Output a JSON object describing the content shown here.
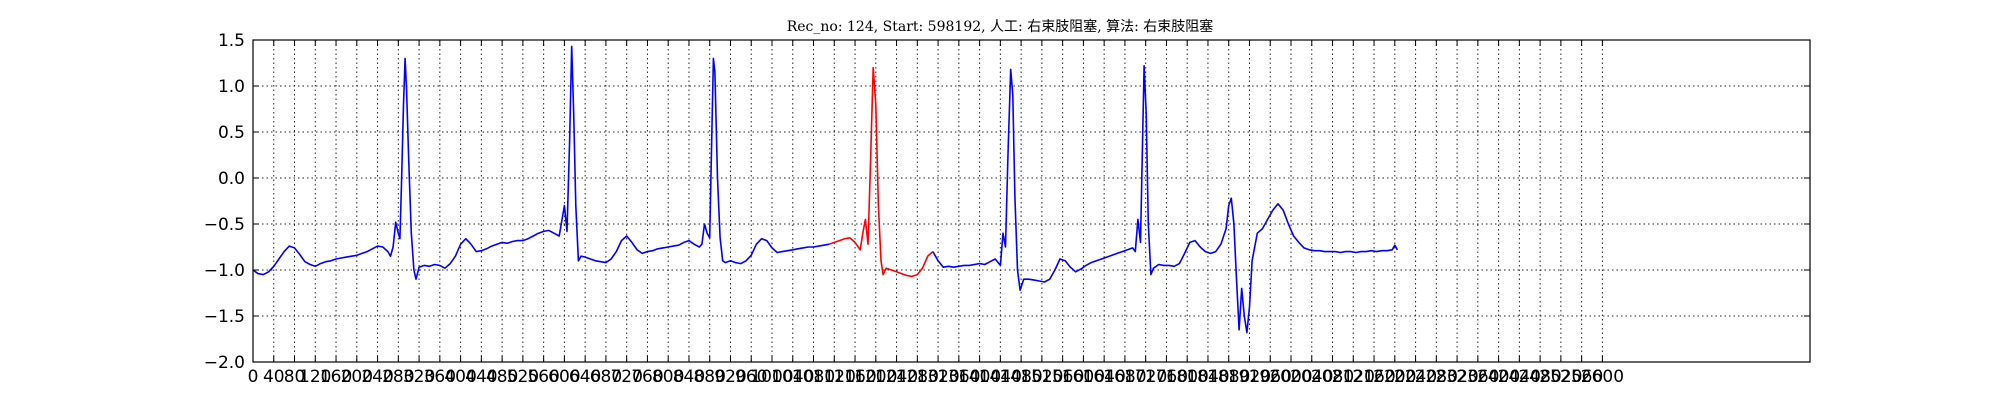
{
  "chart_data": {
    "type": "line",
    "title": "Rec_no: 124, Start: 598192, 人工: 右束肢阻塞, 算法: 右束肢阻塞",
    "xlabel": "",
    "ylabel": "",
    "xlim": [
      0,
      3000
    ],
    "ylim": [
      -2.0,
      1.5
    ],
    "grid": true,
    "y_ticks": [
      -2.0,
      -1.5,
      -1.0,
      -0.5,
      0.0,
      0.5,
      1.0,
      1.5
    ],
    "y_tick_labels": [
      "−2.0",
      "−1.5",
      "−1.0",
      "−0.5",
      "0.0",
      "0.5",
      "1.0",
      "1.5"
    ],
    "x_ticks": [
      0,
      40,
      80,
      120,
      160,
      200,
      240,
      280,
      320,
      360,
      400,
      440,
      480,
      520,
      560,
      600,
      640,
      680,
      720,
      760,
      800,
      840,
      880,
      920,
      960,
      1000,
      1040,
      1080,
      1120,
      1160,
      1200,
      1240,
      1280,
      1320,
      1360,
      1400,
      1440,
      1480,
      1520,
      1560,
      1600,
      1640,
      1680,
      1720,
      1760,
      1800,
      1840,
      1880,
      1920,
      1960,
      2000,
      2040,
      2080,
      2120,
      2160,
      2200,
      2240,
      2280,
      2320,
      2360,
      2400,
      2440,
      2480,
      2520,
      2560,
      2600
    ],
    "x_tick_labels": [
      "0",
      "40",
      "80",
      "120",
      "160",
      "200",
      "240",
      "280",
      "320",
      "360",
      "400",
      "440",
      "480",
      "520",
      "560",
      "600",
      "640",
      "680",
      "720",
      "760",
      "800",
      "840",
      "880",
      "920",
      "960",
      "1000",
      "1040",
      "1080",
      "1120",
      "1160",
      "1200",
      "1240",
      "1280",
      "1320",
      "1360",
      "1400",
      "1440",
      "1480",
      "1520",
      "1560",
      "1600",
      "1640",
      "1680",
      "1720",
      "1760",
      "1800",
      "1840",
      "1880",
      "1920",
      "1960",
      "2000",
      "2040",
      "2080",
      "2120",
      "2160",
      "2200",
      "2240",
      "2280",
      "2320",
      "2360",
      "2400",
      "2440",
      "2480",
      "2520",
      "2560",
      "2600"
    ],
    "series": [
      {
        "color": "#0000ff",
        "points": [
          [
            0,
            -1.0
          ],
          [
            10,
            -1.04
          ],
          [
            20,
            -1.05
          ],
          [
            30,
            -1.02
          ],
          [
            40,
            -0.96
          ],
          [
            50,
            -0.88
          ],
          [
            60,
            -0.8
          ],
          [
            70,
            -0.74
          ],
          [
            80,
            -0.76
          ],
          [
            90,
            -0.83
          ],
          [
            100,
            -0.91
          ],
          [
            110,
            -0.94
          ],
          [
            120,
            -0.96
          ],
          [
            130,
            -0.93
          ],
          [
            140,
            -0.91
          ],
          [
            150,
            -0.9
          ],
          [
            160,
            -0.88
          ],
          [
            170,
            -0.87
          ],
          [
            180,
            -0.86
          ],
          [
            190,
            -0.85
          ],
          [
            200,
            -0.84
          ],
          [
            210,
            -0.82
          ],
          [
            220,
            -0.8
          ],
          [
            230,
            -0.77
          ],
          [
            240,
            -0.74
          ],
          [
            250,
            -0.75
          ],
          [
            260,
            -0.8
          ],
          [
            265,
            -0.85
          ],
          [
            270,
            -0.75
          ],
          [
            275,
            -0.48
          ],
          [
            280,
            -0.6
          ],
          [
            283,
            -0.66
          ],
          [
            286,
            -0.1
          ],
          [
            290,
            0.8
          ],
          [
            293,
            1.3
          ],
          [
            296,
            0.95
          ],
          [
            300,
            0.2
          ],
          [
            305,
            -0.6
          ],
          [
            310,
            -1.0
          ],
          [
            314,
            -1.1
          ],
          [
            320,
            -0.97
          ],
          [
            330,
            -0.95
          ],
          [
            340,
            -0.96
          ],
          [
            350,
            -0.94
          ],
          [
            360,
            -0.95
          ],
          [
            370,
            -0.98
          ],
          [
            380,
            -0.93
          ],
          [
            390,
            -0.85
          ],
          [
            400,
            -0.72
          ],
          [
            410,
            -0.66
          ],
          [
            420,
            -0.72
          ],
          [
            430,
            -0.8
          ],
          [
            440,
            -0.79
          ],
          [
            450,
            -0.77
          ],
          [
            460,
            -0.74
          ],
          [
            470,
            -0.72
          ],
          [
            480,
            -0.7
          ],
          [
            490,
            -0.71
          ],
          [
            500,
            -0.69
          ],
          [
            510,
            -0.68
          ],
          [
            520,
            -0.68
          ],
          [
            530,
            -0.66
          ],
          [
            540,
            -0.63
          ],
          [
            550,
            -0.6
          ],
          [
            560,
            -0.58
          ],
          [
            570,
            -0.57
          ],
          [
            580,
            -0.6
          ],
          [
            590,
            -0.63
          ],
          [
            600,
            -0.3
          ],
          [
            605,
            -0.58
          ],
          [
            610,
            0.4
          ],
          [
            614,
            1.43
          ],
          [
            618,
            0.7
          ],
          [
            622,
            -0.3
          ],
          [
            627,
            -0.9
          ],
          [
            632,
            -0.85
          ],
          [
            640,
            -0.86
          ],
          [
            650,
            -0.88
          ],
          [
            660,
            -0.9
          ],
          [
            670,
            -0.91
          ],
          [
            680,
            -0.92
          ],
          [
            690,
            -0.88
          ],
          [
            700,
            -0.8
          ],
          [
            710,
            -0.68
          ],
          [
            720,
            -0.63
          ],
          [
            730,
            -0.7
          ],
          [
            740,
            -0.78
          ],
          [
            750,
            -0.82
          ],
          [
            760,
            -0.8
          ],
          [
            770,
            -0.79
          ],
          [
            780,
            -0.77
          ],
          [
            790,
            -0.76
          ],
          [
            800,
            -0.75
          ],
          [
            810,
            -0.74
          ],
          [
            820,
            -0.73
          ],
          [
            830,
            -0.7
          ],
          [
            840,
            -0.68
          ],
          [
            850,
            -0.72
          ],
          [
            860,
            -0.75
          ],
          [
            865,
            -0.72
          ],
          [
            870,
            -0.5
          ],
          [
            875,
            -0.6
          ],
          [
            880,
            -0.65
          ],
          [
            883,
            0.2
          ],
          [
            887,
            1.3
          ],
          [
            890,
            1.15
          ],
          [
            895,
            0.0
          ],
          [
            900,
            -0.65
          ],
          [
            905,
            -0.9
          ],
          [
            910,
            -0.92
          ],
          [
            920,
            -0.9
          ],
          [
            930,
            -0.92
          ],
          [
            940,
            -0.93
          ],
          [
            950,
            -0.9
          ],
          [
            960,
            -0.84
          ],
          [
            970,
            -0.72
          ],
          [
            980,
            -0.66
          ],
          [
            990,
            -0.68
          ],
          [
            1000,
            -0.76
          ],
          [
            1010,
            -0.81
          ],
          [
            1020,
            -0.8
          ],
          [
            1030,
            -0.79
          ],
          [
            1040,
            -0.78
          ],
          [
            1050,
            -0.77
          ],
          [
            1060,
            -0.76
          ],
          [
            1070,
            -0.75
          ],
          [
            1080,
            -0.75
          ],
          [
            1090,
            -0.74
          ],
          [
            1100,
            -0.73
          ],
          [
            1110,
            -0.72
          ]
        ]
      },
      {
        "color": "#ff0000",
        "points": [
          [
            1110,
            -0.72
          ],
          [
            1120,
            -0.7
          ],
          [
            1130,
            -0.68
          ],
          [
            1140,
            -0.66
          ],
          [
            1150,
            -0.65
          ],
          [
            1160,
            -0.7
          ],
          [
            1170,
            -0.78
          ],
          [
            1175,
            -0.6
          ],
          [
            1180,
            -0.45
          ],
          [
            1185,
            -0.72
          ],
          [
            1190,
            0.2
          ],
          [
            1195,
            1.2
          ],
          [
            1200,
            0.8
          ],
          [
            1205,
            -0.3
          ],
          [
            1210,
            -0.9
          ],
          [
            1214,
            -1.05
          ],
          [
            1220,
            -0.98
          ],
          [
            1230,
            -1.0
          ],
          [
            1240,
            -1.02
          ],
          [
            1250,
            -1.04
          ],
          [
            1260,
            -1.06
          ],
          [
            1270,
            -1.07
          ],
          [
            1280,
            -1.05
          ],
          [
            1290,
            -0.98
          ],
          [
            1300,
            -0.85
          ],
          [
            1310,
            -0.8
          ]
        ]
      },
      {
        "color": "#0000ff",
        "points": [
          [
            1310,
            -0.8
          ],
          [
            1320,
            -0.9
          ],
          [
            1330,
            -0.97
          ],
          [
            1340,
            -0.96
          ],
          [
            1350,
            -0.97
          ],
          [
            1360,
            -0.96
          ],
          [
            1370,
            -0.95
          ],
          [
            1380,
            -0.95
          ],
          [
            1390,
            -0.94
          ],
          [
            1400,
            -0.93
          ],
          [
            1410,
            -0.94
          ],
          [
            1420,
            -0.91
          ],
          [
            1430,
            -0.88
          ],
          [
            1440,
            -0.95
          ],
          [
            1445,
            -0.6
          ],
          [
            1450,
            -0.75
          ],
          [
            1455,
            0.3
          ],
          [
            1460,
            1.18
          ],
          [
            1464,
            0.9
          ],
          [
            1468,
            -0.2
          ],
          [
            1473,
            -1.0
          ],
          [
            1478,
            -1.22
          ],
          [
            1485,
            -1.1
          ],
          [
            1495,
            -1.1
          ],
          [
            1505,
            -1.11
          ],
          [
            1515,
            -1.12
          ],
          [
            1525,
            -1.13
          ],
          [
            1535,
            -1.1
          ],
          [
            1545,
            -1.0
          ],
          [
            1555,
            -0.88
          ],
          [
            1565,
            -0.9
          ],
          [
            1575,
            -0.97
          ],
          [
            1585,
            -1.02
          ],
          [
            1595,
            -0.99
          ],
          [
            1605,
            -0.95
          ],
          [
            1615,
            -0.92
          ],
          [
            1625,
            -0.9
          ],
          [
            1635,
            -0.88
          ],
          [
            1645,
            -0.86
          ],
          [
            1655,
            -0.84
          ],
          [
            1665,
            -0.82
          ],
          [
            1675,
            -0.8
          ],
          [
            1685,
            -0.78
          ],
          [
            1695,
            -0.76
          ],
          [
            1700,
            -0.8
          ],
          [
            1705,
            -0.45
          ],
          [
            1710,
            -0.7
          ],
          [
            1713,
            0.1
          ],
          [
            1717,
            1.22
          ],
          [
            1721,
            0.7
          ],
          [
            1725,
            -0.5
          ],
          [
            1730,
            -1.05
          ],
          [
            1735,
            -0.98
          ],
          [
            1745,
            -0.94
          ],
          [
            1755,
            -0.95
          ],
          [
            1765,
            -0.95
          ],
          [
            1775,
            -0.96
          ],
          [
            1785,
            -0.93
          ],
          [
            1795,
            -0.82
          ],
          [
            1805,
            -0.7
          ],
          [
            1815,
            -0.68
          ],
          [
            1825,
            -0.75
          ],
          [
            1835,
            -0.8
          ],
          [
            1845,
            -0.82
          ],
          [
            1855,
            -0.8
          ],
          [
            1865,
            -0.72
          ],
          [
            1875,
            -0.55
          ],
          [
            1880,
            -0.3
          ],
          [
            1885,
            -0.22
          ],
          [
            1890,
            -0.5
          ],
          [
            1895,
            -1.1
          ],
          [
            1900,
            -1.65
          ],
          [
            1905,
            -1.2
          ],
          [
            1910,
            -1.5
          ],
          [
            1915,
            -1.68
          ],
          [
            1920,
            -1.4
          ],
          [
            1925,
            -0.9
          ],
          [
            1935,
            -0.6
          ],
          [
            1945,
            -0.55
          ],
          [
            1955,
            -0.45
          ],
          [
            1965,
            -0.35
          ],
          [
            1975,
            -0.28
          ],
          [
            1985,
            -0.35
          ],
          [
            1995,
            -0.5
          ],
          [
            2005,
            -0.63
          ],
          [
            2015,
            -0.7
          ],
          [
            2025,
            -0.76
          ],
          [
            2035,
            -0.78
          ],
          [
            2045,
            -0.79
          ],
          [
            2055,
            -0.79
          ],
          [
            2065,
            -0.8
          ],
          [
            2075,
            -0.8
          ],
          [
            2085,
            -0.8
          ],
          [
            2095,
            -0.81
          ],
          [
            2105,
            -0.8
          ],
          [
            2115,
            -0.8
          ],
          [
            2125,
            -0.81
          ],
          [
            2135,
            -0.8
          ],
          [
            2145,
            -0.8
          ],
          [
            2155,
            -0.79
          ],
          [
            2165,
            -0.8
          ],
          [
            2175,
            -0.79
          ],
          [
            2185,
            -0.79
          ],
          [
            2195,
            -0.78
          ],
          [
            2200,
            -0.73
          ],
          [
            2205,
            -0.78
          ]
        ]
      }
    ]
  }
}
